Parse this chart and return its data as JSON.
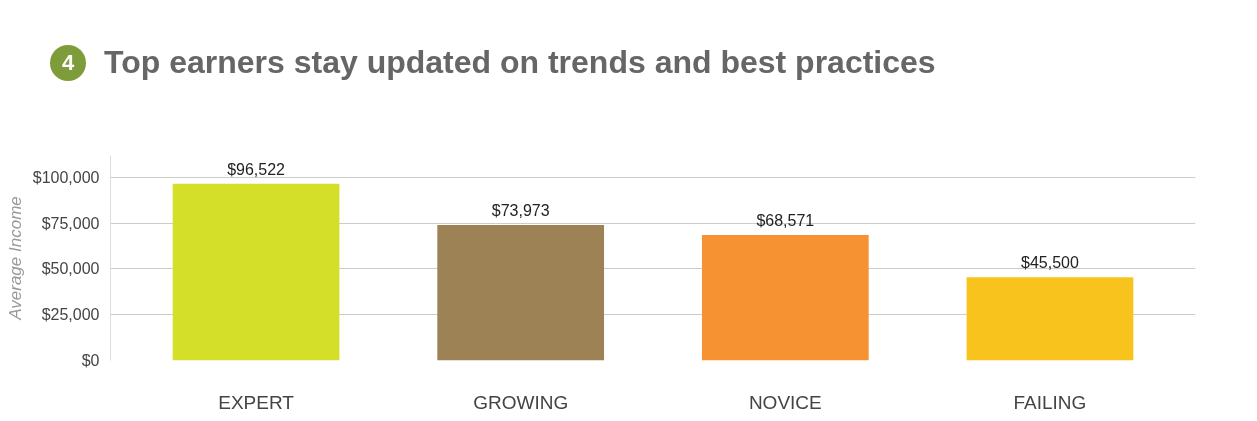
{
  "chart_data": {
    "type": "bar",
    "title": "Top earners stay updated on trends and best practices",
    "annotations": [
      "4"
    ],
    "ylabel": "Average Income",
    "categories": [
      "EXPERT",
      "GROWING",
      "NOVICE",
      "FAILING"
    ],
    "values": [
      96522,
      73973,
      68571,
      45500
    ],
    "colors": [
      "#d4df2a",
      "#9c8255",
      "#f79232",
      "#f8c31c"
    ],
    "value_labels": [
      "$96,522",
      "$73,973",
      "$68,571",
      "$45,500"
    ],
    "ylim": [
      0,
      112000
    ],
    "yticks": [
      {
        "value": 0,
        "label": "$0"
      },
      {
        "value": 25000,
        "label": "$25,000"
      },
      {
        "value": 50000,
        "label": "$50,000"
      },
      {
        "value": 75000,
        "label": "$75,000"
      },
      {
        "value": 100000,
        "label": "$100,000"
      }
    ],
    "grid": "y"
  }
}
